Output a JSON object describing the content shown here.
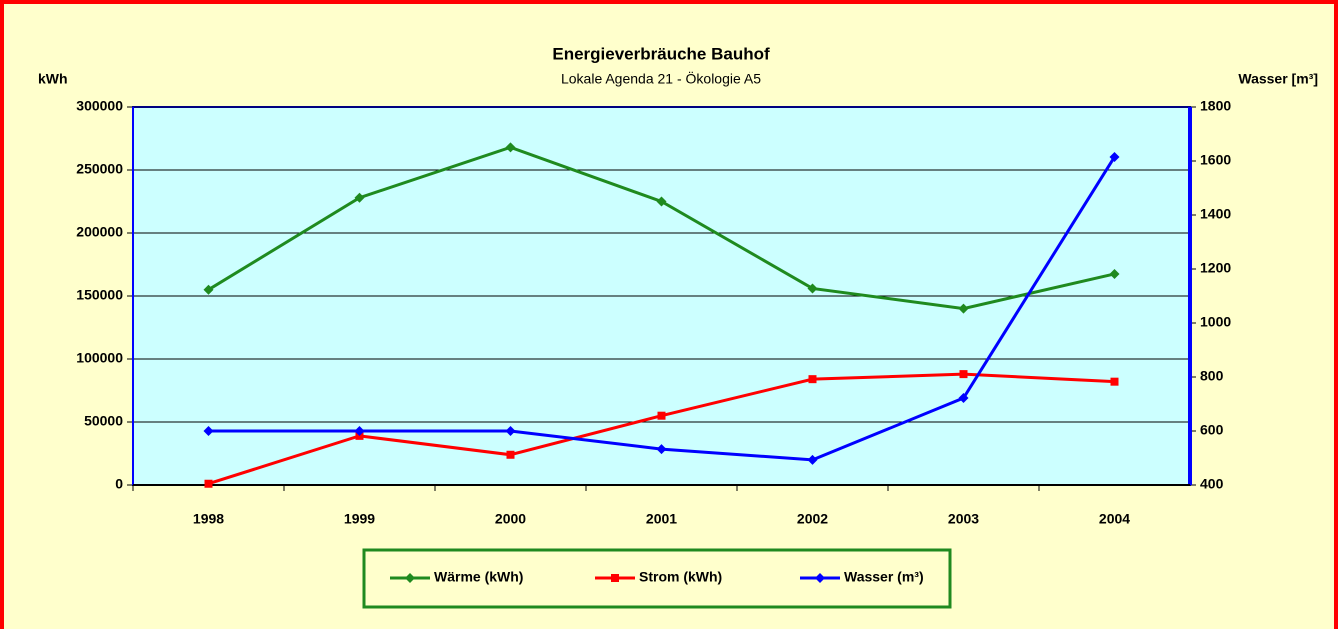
{
  "chart_data": {
    "type": "line",
    "title": "Energieverbräuche Bauhof",
    "subtitle": "Lokale Agenda 21 - Ökologie A5",
    "y_label": "kWh",
    "y2_label": "Wasser [m³]",
    "categories": [
      "1998",
      "1999",
      "2000",
      "2001",
      "2002",
      "2003",
      "2004"
    ],
    "series": [
      {
        "name": "Wärme (kWh)",
        "color": "#1f8a1f",
        "marker": "diamond",
        "values": [
          155000,
          228000,
          268000,
          225000,
          156000,
          140000,
          167500
        ]
      },
      {
        "name": "Strom (kWh)",
        "color": "#ff0000",
        "marker": "square",
        "values": [
          1000,
          39000,
          24000,
          55000,
          84000,
          88000,
          82000
        ]
      },
      {
        "name": "Wasser (m³)",
        "color": "#0000ff",
        "marker": "diamond",
        "axis": "y2",
        "values": [
          600,
          600,
          600,
          533,
          493,
          722,
          1615
        ]
      }
    ],
    "ylim": [
      0,
      300000
    ],
    "yticks": [
      0,
      50000,
      100000,
      150000,
      200000,
      250000,
      300000
    ],
    "y2lim": [
      400,
      1800
    ],
    "y2ticks": [
      400,
      600,
      800,
      1000,
      1200,
      1400,
      1600,
      1800
    ],
    "grid": true,
    "legend": "bottom"
  }
}
